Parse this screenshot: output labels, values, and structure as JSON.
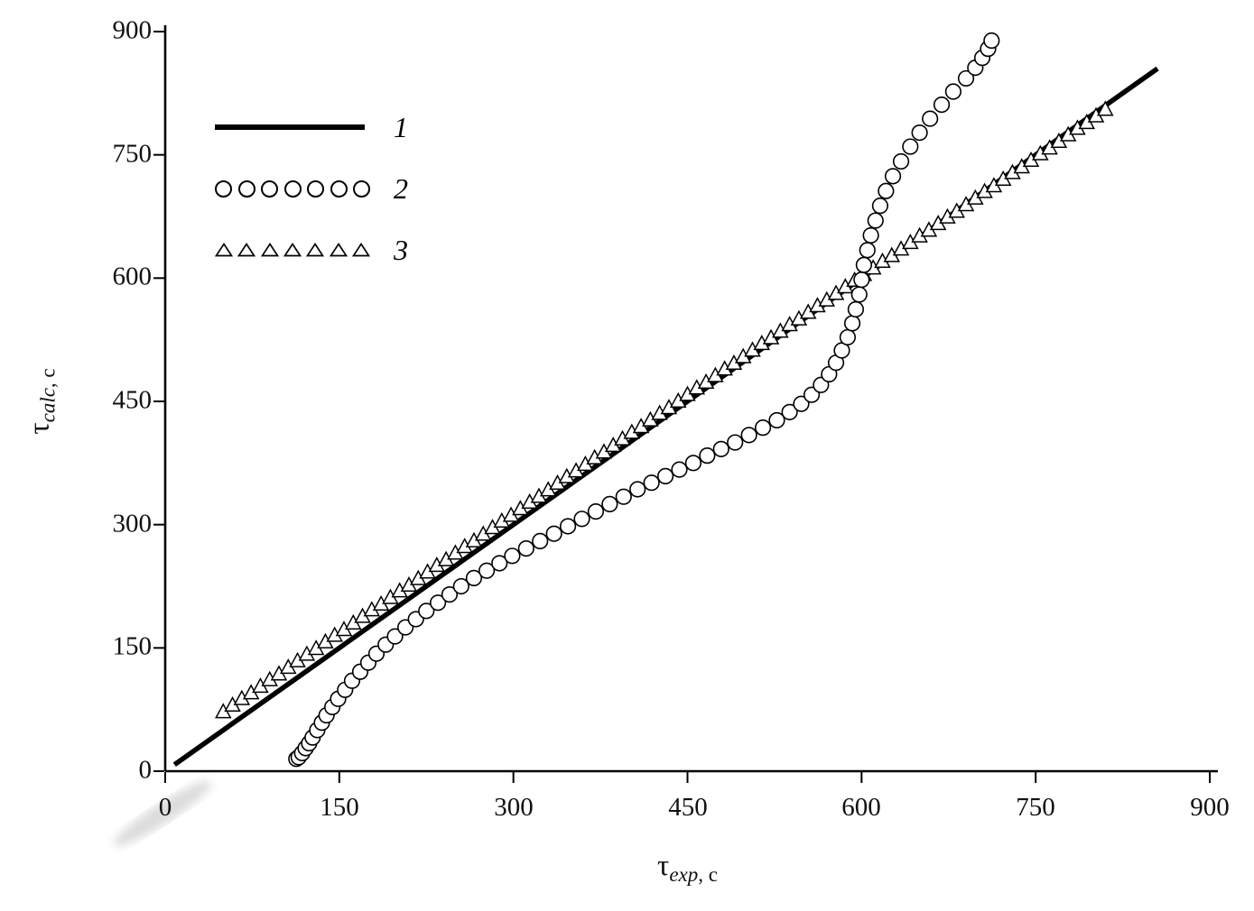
{
  "chart_data": {
    "type": "scatter",
    "title": "",
    "xlabel": {
      "symbol": "τ",
      "subscript": "exp",
      "unit": ", c"
    },
    "ylabel": {
      "symbol": "τ",
      "subscript": "calc",
      "unit": ", c"
    },
    "xlim": [
      0,
      900
    ],
    "ylim": [
      0,
      900
    ],
    "xticks": [
      "0",
      "150",
      "300",
      "450",
      "600",
      "750",
      "900"
    ],
    "yticks": [
      "0",
      "150",
      "300",
      "450",
      "600",
      "750",
      "900"
    ],
    "grid": false,
    "legend": {
      "position": "top-left-inside",
      "entries": [
        {
          "label": "1",
          "marker": "line",
          "swatch_count": 1
        },
        {
          "label": "2",
          "marker": "circle",
          "swatch_count": 7
        },
        {
          "label": "3",
          "marker": "triangle",
          "swatch_count": 7
        }
      ]
    },
    "series": [
      {
        "name": "1",
        "type": "line",
        "marker": "none",
        "color": "#000000",
        "width": 5.5,
        "points": [
          [
            8,
            8
          ],
          [
            855,
            855
          ]
        ]
      },
      {
        "name": "2",
        "type": "scatter",
        "marker": "circle",
        "color": "#000000",
        "fill": "#ffffff",
        "points": [
          [
            113,
            15
          ],
          [
            115,
            17
          ],
          [
            118,
            22
          ],
          [
            121,
            28
          ],
          [
            124,
            34
          ],
          [
            127,
            41
          ],
          [
            131,
            50
          ],
          [
            135,
            59
          ],
          [
            139,
            68
          ],
          [
            144,
            78
          ],
          [
            149,
            88
          ],
          [
            155,
            99
          ],
          [
            161,
            110
          ],
          [
            168,
            121
          ],
          [
            175,
            132
          ],
          [
            182,
            143
          ],
          [
            190,
            154
          ],
          [
            198,
            164
          ],
          [
            207,
            175
          ],
          [
            216,
            185
          ],
          [
            225,
            195
          ],
          [
            235,
            205
          ],
          [
            245,
            215
          ],
          [
            255,
            225
          ],
          [
            266,
            235
          ],
          [
            277,
            244
          ],
          [
            288,
            253
          ],
          [
            299,
            262
          ],
          [
            311,
            271
          ],
          [
            323,
            280
          ],
          [
            335,
            289
          ],
          [
            347,
            298
          ],
          [
            359,
            307
          ],
          [
            371,
            316
          ],
          [
            383,
            325
          ],
          [
            395,
            334
          ],
          [
            407,
            343
          ],
          [
            419,
            351
          ],
          [
            431,
            359
          ],
          [
            443,
            367
          ],
          [
            455,
            375
          ],
          [
            467,
            384
          ],
          [
            479,
            392
          ],
          [
            491,
            400
          ],
          [
            503,
            409
          ],
          [
            515,
            418
          ],
          [
            527,
            427
          ],
          [
            538,
            437
          ],
          [
            548,
            447
          ],
          [
            557,
            458
          ],
          [
            565,
            470
          ],
          [
            572,
            483
          ],
          [
            578,
            497
          ],
          [
            583,
            512
          ],
          [
            588,
            528
          ],
          [
            592,
            545
          ],
          [
            595,
            562
          ],
          [
            598,
            580
          ],
          [
            600,
            598
          ],
          [
            602,
            616
          ],
          [
            605,
            634
          ],
          [
            608,
            652
          ],
          [
            612,
            670
          ],
          [
            616,
            688
          ],
          [
            621,
            706
          ],
          [
            627,
            724
          ],
          [
            634,
            742
          ],
          [
            642,
            760
          ],
          [
            650,
            777
          ],
          [
            659,
            794
          ],
          [
            669,
            811
          ],
          [
            679,
            827
          ],
          [
            690,
            843
          ],
          [
            698,
            856
          ],
          [
            704,
            868
          ],
          [
            709,
            879
          ],
          [
            712,
            889
          ]
        ]
      },
      {
        "name": "3",
        "type": "scatter",
        "marker": "triangle",
        "color": "#000000",
        "fill": "#ffffff",
        "points": [
          [
            50,
            72
          ],
          [
            58,
            80
          ],
          [
            66,
            88
          ],
          [
            74,
            95
          ],
          [
            82,
            103
          ],
          [
            90,
            111
          ],
          [
            98,
            118
          ],
          [
            106,
            126
          ],
          [
            114,
            134
          ],
          [
            122,
            142
          ],
          [
            130,
            149
          ],
          [
            138,
            157
          ],
          [
            146,
            165
          ],
          [
            154,
            172
          ],
          [
            162,
            180
          ],
          [
            170,
            188
          ],
          [
            178,
            196
          ],
          [
            186,
            203
          ],
          [
            194,
            211
          ],
          [
            202,
            219
          ],
          [
            210,
            226
          ],
          [
            218,
            234
          ],
          [
            226,
            242
          ],
          [
            234,
            250
          ],
          [
            242,
            257
          ],
          [
            250,
            265
          ],
          [
            258,
            273
          ],
          [
            266,
            280
          ],
          [
            274,
            288
          ],
          [
            282,
            296
          ],
          [
            290,
            304
          ],
          [
            298,
            311
          ],
          [
            306,
            319
          ],
          [
            314,
            327
          ],
          [
            322,
            334
          ],
          [
            330,
            342
          ],
          [
            338,
            350
          ],
          [
            346,
            358
          ],
          [
            354,
            365
          ],
          [
            362,
            373
          ],
          [
            370,
            381
          ],
          [
            378,
            388
          ],
          [
            386,
            396
          ],
          [
            394,
            404
          ],
          [
            402,
            412
          ],
          [
            410,
            419
          ],
          [
            418,
            427
          ],
          [
            426,
            435
          ],
          [
            434,
            442
          ],
          [
            442,
            450
          ],
          [
            450,
            458
          ],
          [
            458,
            466
          ],
          [
            466,
            473
          ],
          [
            474,
            481
          ],
          [
            482,
            489
          ],
          [
            490,
            496
          ],
          [
            498,
            504
          ],
          [
            506,
            512
          ],
          [
            514,
            520
          ],
          [
            522,
            527
          ],
          [
            530,
            535
          ],
          [
            538,
            543
          ],
          [
            546,
            550
          ],
          [
            554,
            558
          ],
          [
            562,
            566
          ],
          [
            570,
            573
          ],
          [
            578,
            581
          ],
          [
            586,
            589
          ],
          [
            594,
            597
          ],
          [
            602,
            604
          ],
          [
            610,
            612
          ],
          [
            618,
            620
          ],
          [
            626,
            627
          ],
          [
            634,
            635
          ],
          [
            642,
            643
          ],
          [
            650,
            651
          ],
          [
            658,
            658
          ],
          [
            666,
            666
          ],
          [
            674,
            674
          ],
          [
            682,
            681
          ],
          [
            690,
            689
          ],
          [
            698,
            697
          ],
          [
            706,
            705
          ],
          [
            714,
            712
          ],
          [
            722,
            720
          ],
          [
            730,
            728
          ],
          [
            738,
            735
          ],
          [
            746,
            743
          ],
          [
            754,
            751
          ],
          [
            762,
            758
          ],
          [
            770,
            766
          ],
          [
            778,
            774
          ],
          [
            786,
            782
          ],
          [
            794,
            789
          ],
          [
            802,
            797
          ],
          [
            810,
            805
          ]
        ]
      }
    ]
  },
  "colors": {
    "background": "#ffffff",
    "axis": "#000000",
    "text": "#111111",
    "marker_fill": "#ffffff"
  }
}
